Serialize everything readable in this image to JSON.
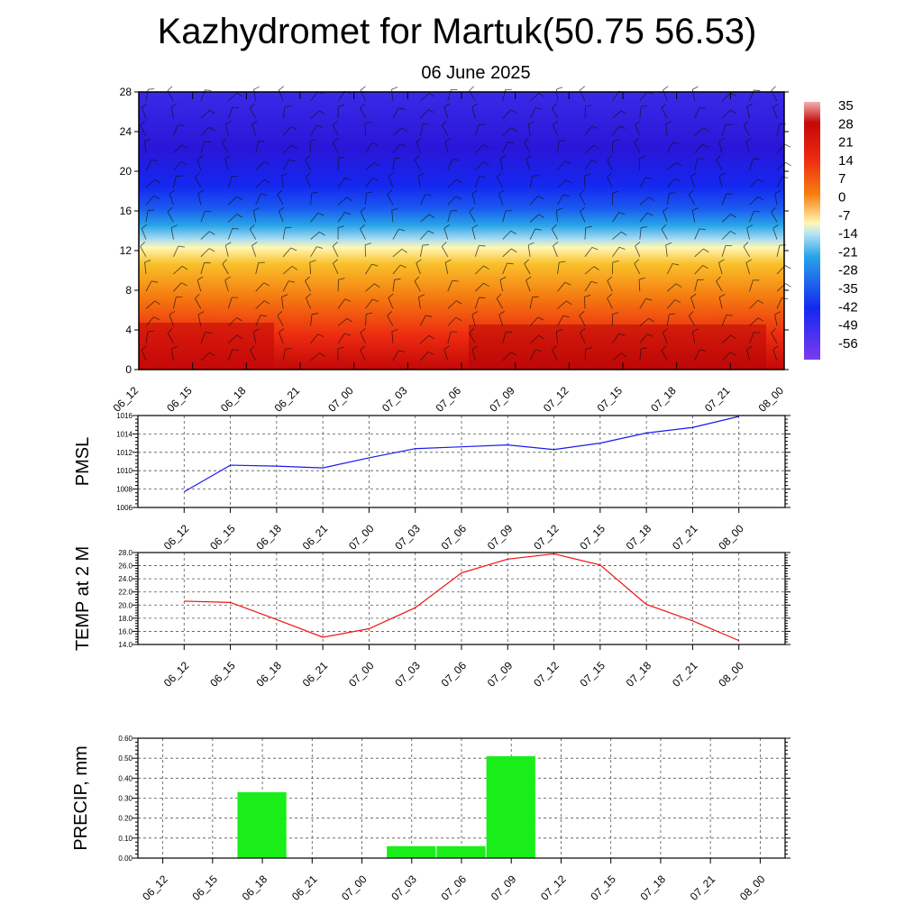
{
  "title": "Kazhydromet for Martuk(50.75 56.53)",
  "subtitle": "06 June 2025",
  "chart_data": [
    {
      "type": "heatmap",
      "description_kind": "time-height temperature cross-section with wind barbs",
      "x": [
        "06_12",
        "06_15",
        "06_18",
        "06_21",
        "07_00",
        "07_03",
        "07_06",
        "07_09",
        "07_12",
        "07_15",
        "07_18",
        "07_21",
        "08_00"
      ],
      "y_ticks": [
        0,
        4,
        8,
        12,
        16,
        20,
        24,
        28
      ],
      "ylim": [
        0,
        28
      ],
      "colorbar_labels": [
        "35",
        "28",
        "21",
        "14",
        "7",
        "0",
        "-7",
        "-14",
        "-21",
        "-28",
        "-35",
        "-42",
        "-49",
        "-56"
      ],
      "colors": {
        "very_hot": "#c40808",
        "hot": "#ec2a10",
        "orange": "#f7800f",
        "yellow": "#f9cd2a",
        "pale": "#fff7b5",
        "light_blue": "#a8dcf0",
        "sky": "#28a4e8",
        "blue": "#1428f0",
        "deep_blue": "#2a16d8",
        "violet": "#7a3cf0"
      }
    },
    {
      "type": "line",
      "ylabel": "PMSL",
      "x": [
        "06_12",
        "06_15",
        "06_18",
        "06_21",
        "07_00",
        "07_03",
        "07_06",
        "07_09",
        "07_12",
        "07_15",
        "07_18",
        "07_21",
        "08_00"
      ],
      "series": [
        {
          "values": [
            1007.7,
            1010.6,
            1010.5,
            1010.3,
            1011.4,
            1012.4,
            1012.6,
            1012.8,
            1012.3,
            1013.0,
            1014.1,
            1014.7,
            1015.9
          ],
          "color": "#1a1aee"
        }
      ],
      "ylim": [
        1006,
        1016
      ],
      "y_ticks": [
        "1006",
        "1008",
        "1010",
        "1012",
        "1014",
        "1016"
      ],
      "grid": true
    },
    {
      "type": "line",
      "ylabel": "TEMP at 2 M",
      "x": [
        "06_12",
        "06_15",
        "06_18",
        "06_21",
        "07_00",
        "07_03",
        "07_06",
        "07_09",
        "07_12",
        "07_15",
        "07_18",
        "07_21",
        "08_00"
      ],
      "series": [
        {
          "values": [
            20.6,
            20.4,
            17.8,
            15.1,
            16.4,
            19.6,
            24.9,
            27.0,
            27.8,
            26.1,
            20.1,
            17.6,
            14.6
          ],
          "color": "#ee1111"
        }
      ],
      "ylim": [
        14,
        28
      ],
      "y_ticks": [
        "14.0",
        "16.0",
        "18.0",
        "20.0",
        "22.0",
        "24.0",
        "26.0",
        "28.0"
      ],
      "grid": true
    },
    {
      "type": "bar",
      "ylabel": "PRECIP, mm",
      "categories": [
        "06_12",
        "06_15",
        "06_18",
        "06_21",
        "07_00",
        "07_03",
        "07_06",
        "07_09",
        "07_12",
        "07_15",
        "07_18",
        "07_21",
        "08_00"
      ],
      "values": [
        0,
        0,
        0.33,
        0,
        0,
        0.06,
        0.06,
        0.51,
        0,
        0,
        0,
        0,
        0
      ],
      "ylim": [
        0,
        0.6
      ],
      "y_ticks": [
        "0.00",
        "0.10",
        "0.20",
        "0.30",
        "0.40",
        "0.50",
        "0.60"
      ],
      "bar_color": "#19ee19",
      "grid": true
    }
  ]
}
